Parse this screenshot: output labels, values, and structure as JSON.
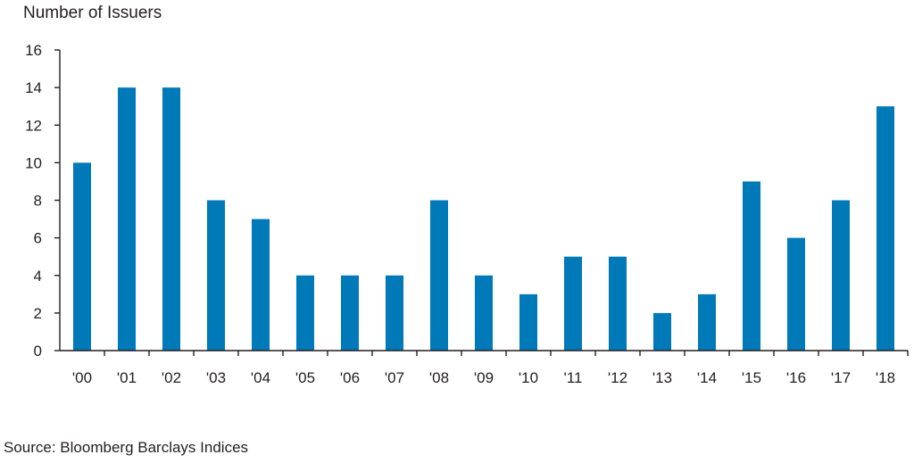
{
  "chart_data": {
    "type": "bar",
    "ylabel": "Number of Issuers",
    "xlabel": "",
    "title": "",
    "categories": [
      "'00",
      "'01",
      "'02",
      "'03",
      "'04",
      "'05",
      "'06",
      "'07",
      "'08",
      "'09",
      "'10",
      "'11",
      "'12",
      "'13",
      "'14",
      "'15",
      "'16",
      "'17",
      "'18"
    ],
    "values": [
      10,
      14,
      14,
      8,
      7,
      4,
      4,
      4,
      8,
      4,
      3,
      5,
      5,
      2,
      3,
      9,
      6,
      8,
      13
    ],
    "ylim": [
      0,
      16
    ],
    "yticks": [
      0,
      2,
      4,
      6,
      8,
      10,
      12,
      14,
      16
    ],
    "grid": false,
    "bar_color": "#0079b8"
  },
  "source": "Source: Bloomberg Barclays Indices"
}
